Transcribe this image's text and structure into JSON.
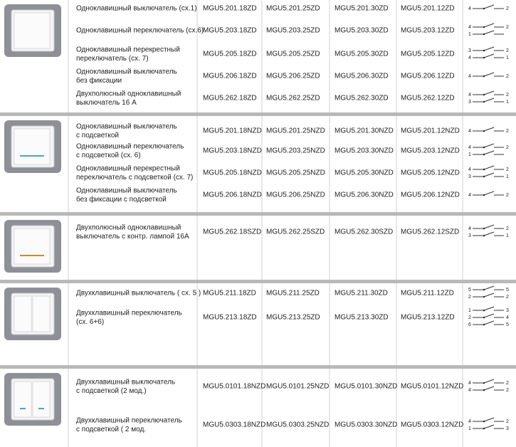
{
  "groups": [
    {
      "rows": [
        {
          "name": [
            "Одноклавишный выключатель (сх.1)"
          ],
          "codes": [
            "MGU5.201.18ZD",
            "MGU5.201.25ZD",
            "MGU5.201.30ZD",
            "MGU5.201.12ZD"
          ],
          "terminals": [
            "4",
            "2"
          ]
        },
        {
          "name": [
            "Одноклавишный переключатель (сх.6)"
          ],
          "codes": [
            "MGU5.203.18ZD",
            "MGU5.203.25ZD",
            "MGU5.203.30ZD",
            "MGU5.203.12ZD"
          ],
          "terminals": [
            "4",
            "2",
            "1"
          ]
        },
        {
          "name": [
            "Одноклавишный перекрестный",
            "переключатель (сх. 7)"
          ],
          "codes": [
            "MGU5.205.18ZD",
            "MGU5.205.25ZD",
            "MGU5.205.30ZD",
            "MGU5.205.12ZD"
          ],
          "terminals": [
            "3",
            "2",
            "4",
            "1"
          ]
        },
        {
          "name": [
            "Одноклавишный выключатель",
            "без фиксации"
          ],
          "codes": [
            "MGU5.206.18ZD",
            "MGU5.206.25ZD",
            "MGU5.206.30ZD",
            "MGU5.206.12ZD"
          ],
          "terminals": [
            "4",
            "2"
          ]
        },
        {
          "name": [
            "Двухполюсный одноклавишный",
            "выключатель 16 А"
          ],
          "codes": [
            "MGU5.262.18ZD",
            "MGU5.262.25ZD",
            "MGU5.262.30ZD",
            "MGU5.262.12ZD"
          ],
          "terminals": [
            "4",
            "2",
            "3",
            "1"
          ]
        }
      ]
    },
    {
      "rows": [
        {
          "name": [
            "Одноклавишный выключатель",
            "с подсветкой"
          ],
          "codes": [
            "MGU5.201.18NZD",
            "MGU5.201.25NZD",
            "MGU5.201.30NZD",
            "MGU5.201.12NZD"
          ],
          "terminals": [
            "4",
            "2"
          ]
        },
        {
          "name": [
            "Одноклавишный переключатель",
            "с подсветкой (сх. 6)"
          ],
          "codes": [
            "MGU5.203.18NZD",
            "MGU5.203.25NZD",
            "MGU5.203.30NZD",
            "MGU5.203.12NZD"
          ],
          "terminals": [
            "4",
            "2",
            "1"
          ]
        },
        {
          "name": [
            "Одноклавишный перекрестный",
            "переключатель с подсветкой (сх. 7)"
          ],
          "codes": [
            "MGU5.205.18NZD",
            "MGU5.205.25NZD",
            "MGU5.205.30NZD",
            "MGU5.205.12NZD"
          ],
          "terminals": [
            "4",
            "2",
            "3",
            "1"
          ]
        },
        {
          "name": [
            "Одноклавишный  выключатель",
            "без фиксации с подсветкой"
          ],
          "codes": [
            "MGU5.206.18NZD",
            "MGU5.206.25NZD",
            "MGU5.206.30NZD",
            "MGU5.206.12NZD"
          ],
          "terminals": [
            "4",
            "2"
          ]
        }
      ]
    },
    {
      "rows": [
        {
          "name": [
            "Двухполюсный одноклавишный",
            "выключатель с контр. лампой 16А"
          ],
          "codes": [
            "MGU5.262.18SZD",
            "MGU5.262.25SZD",
            "MGU5.262.30SZD",
            "MGU5.262.12SZD"
          ],
          "terminals": [
            "4",
            "2",
            "3",
            "1"
          ]
        }
      ]
    },
    {
      "rows": [
        {
          "name": [
            "Двухклавишный выключатель ( сх. 5 )"
          ],
          "codes": [
            "MGU5.211.18ZD",
            "MGU5.211.25ZD",
            "MGU5.211.30ZD",
            "MGU5.211.12ZD"
          ],
          "terminals": [
            "5",
            "5",
            "2",
            "2"
          ]
        },
        {
          "name": [
            "Двухклавишный переключатель",
            "(сх. 6+6)"
          ],
          "codes": [
            "MGU5.213.18ZD",
            "MGU5.213.25ZD",
            "MGU5.213.30ZD",
            "MGU5.213.12ZD"
          ],
          "terminals": [
            "1",
            "3",
            "2",
            "4",
            "6",
            "5"
          ]
        }
      ]
    },
    {
      "rows": [
        {
          "name": [
            "Двухклавишный выключатель",
            "с подсветкой (2 мод.)"
          ],
          "codes": [
            "MGU5.0101.18NZD",
            "MGU5.0101.25NZD",
            "MGU5.0101.30NZD",
            "MGU5.0101.12NZD"
          ],
          "terminals": [
            "4",
            "2",
            "4",
            "2"
          ]
        },
        {
          "name": [
            "Двухклавишный переключатель",
            "с подсветкой ( 2 мод."
          ],
          "codes": [
            "MGU5.0303.18NZD",
            "MGU5.0303.25NZD",
            "MGU5.0303.30NZD",
            "MGU5.0303.12NZD"
          ],
          "terminals": [
            "4",
            "2",
            "1",
            "3"
          ]
        }
      ]
    }
  ]
}
